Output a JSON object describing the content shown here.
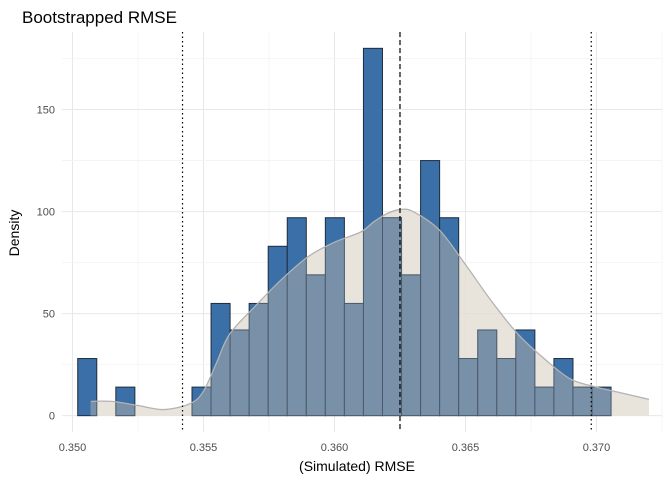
{
  "chart_data": {
    "type": "bar",
    "title": "Bootstrapped RMSE",
    "xlabel": "(Simulated) RMSE",
    "ylabel": "Density",
    "xlim": [
      0.3496,
      0.3725
    ],
    "ylim": [
      -8,
      188
    ],
    "xticks": [
      0.35,
      0.355,
      0.36,
      0.365,
      0.37
    ],
    "xtick_labels": [
      "0.350",
      "0.355",
      "0.360",
      "0.365",
      "0.370"
    ],
    "yticks": [
      0,
      50,
      100,
      150
    ],
    "ytick_labels": [
      "0",
      "50",
      "100",
      "150"
    ],
    "grid": true,
    "histogram": {
      "bin_start": 0.3502,
      "bin_width": 0.000727,
      "values": [
        28,
        0,
        14,
        0,
        0,
        0,
        14,
        55,
        42,
        55,
        83,
        97,
        69,
        97,
        55,
        180,
        97,
        69,
        125,
        97,
        28,
        42,
        28,
        42,
        14,
        28,
        14,
        14
      ],
      "fill": "#3a6fa8",
      "overlay_fill": "#e3ddd3",
      "edge": "#1f2d3d"
    },
    "density_curve": {
      "x": [
        0.3507,
        0.3515,
        0.3525,
        0.3535,
        0.3545,
        0.355,
        0.3555,
        0.356,
        0.357,
        0.358,
        0.359,
        0.36,
        0.361,
        0.3615,
        0.362,
        0.3625,
        0.363,
        0.364,
        0.365,
        0.366,
        0.367,
        0.368,
        0.369,
        0.37,
        0.371,
        0.372
      ],
      "y": [
        7,
        7,
        5,
        3,
        6,
        12,
        26,
        40,
        54,
        67,
        78,
        85,
        90,
        95,
        99,
        101,
        100,
        91,
        74,
        56,
        40,
        28,
        18,
        14,
        11,
        8
      ],
      "stroke": "#b3b3b3"
    },
    "vlines": [
      {
        "x": 0.3542,
        "style": "dotted"
      },
      {
        "x": 0.3625,
        "style": "dashed"
      },
      {
        "x": 0.3698,
        "style": "dotted"
      }
    ]
  }
}
